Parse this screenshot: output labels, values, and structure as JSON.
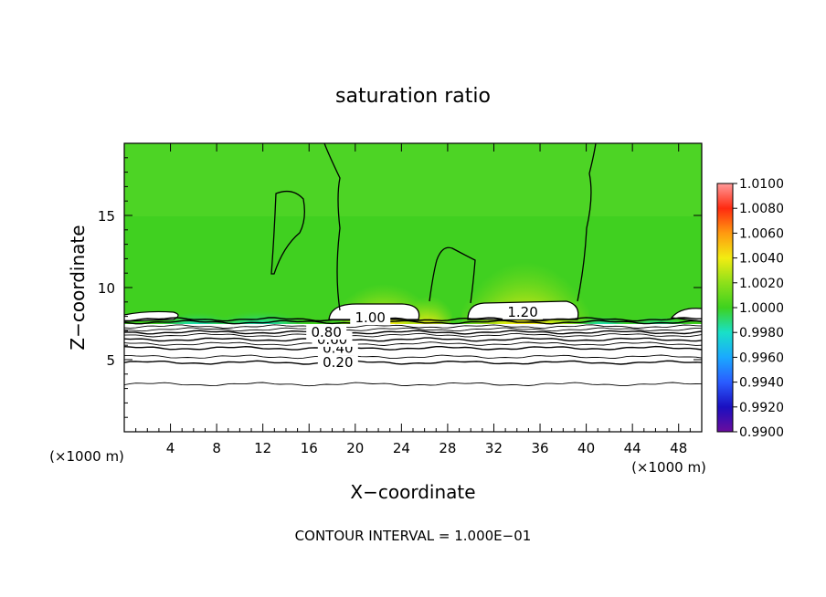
{
  "chart_data": {
    "type": "heatmap",
    "title": "saturation ratio",
    "xlabel": "X−coordinate",
    "ylabel": "Z−coordinate",
    "x_unit_label_left": "(×1000 m)",
    "x_unit_label_right": "(×1000 m)",
    "footer": "CONTOUR INTERVAL = 1.000E−01",
    "xlim": [
      0,
      50
    ],
    "ylim": [
      0,
      20
    ],
    "x_ticks": [
      4,
      8,
      12,
      16,
      20,
      24,
      28,
      32,
      36,
      40,
      44,
      48
    ],
    "y_ticks": [
      5,
      10,
      15
    ],
    "colorbar": {
      "min": 0.99,
      "max": 1.01,
      "levels": [
        "0.9900",
        "0.9920",
        "0.9940",
        "0.9960",
        "0.9980",
        "1.0000",
        "1.0020",
        "1.0040",
        "1.0060",
        "1.0080",
        "1.0100"
      ],
      "colors": [
        "#6a0d9e",
        "#1a0fc0",
        "#2a5cff",
        "#1aa9ff",
        "#19e0c8",
        "#3ed21e",
        "#8ee01a",
        "#f2ec12",
        "#ff9a10",
        "#ff2a10",
        "#ff9a9a"
      ]
    },
    "contours": [
      {
        "value": 0.2,
        "label": "0.20",
        "z": 4.8
      },
      {
        "value": 0.4,
        "label": "0.40",
        "z": 5.8
      },
      {
        "value": 0.6,
        "label": "0.60",
        "z": 6.4
      },
      {
        "value": 0.8,
        "label": "0.80",
        "z": 6.9
      },
      {
        "value": 1.0,
        "label": "1.00",
        "z": 7.6
      },
      {
        "value": 1.2,
        "label": "1.20",
        "z": 7.8
      }
    ],
    "colors": {
      "background_field": "#40d020",
      "axes": "#000000"
    }
  }
}
